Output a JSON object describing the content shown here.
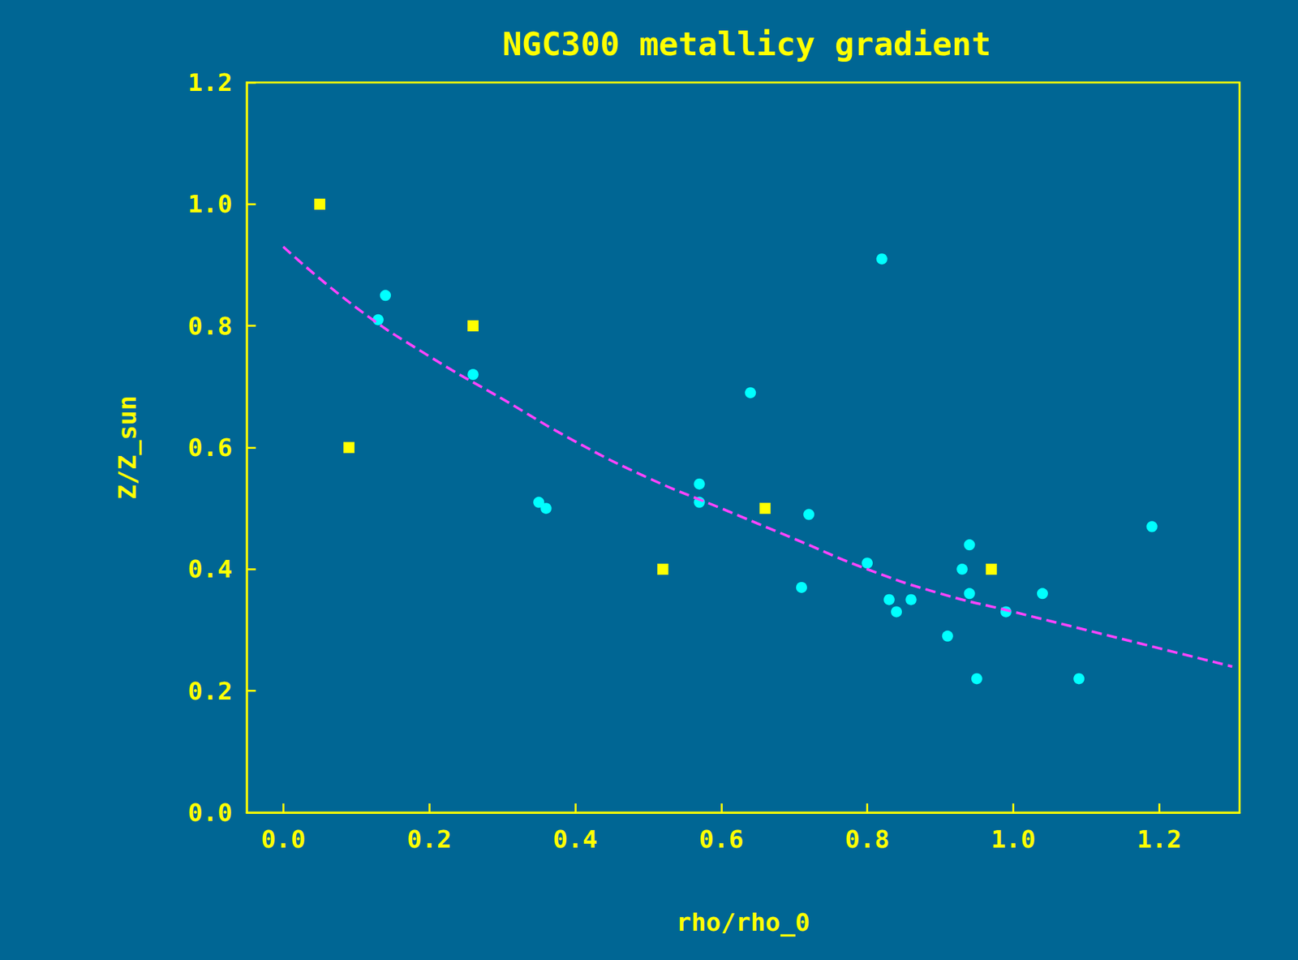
{
  "chart_data": {
    "type": "scatter",
    "title": "NGC300 metallicy gradient",
    "x_label": "rho/rho_0",
    "y_label": "Z/Z_sun",
    "xlim": [
      -0.05,
      1.31
    ],
    "ylim": [
      0,
      1.2
    ],
    "xticks": [
      {
        "value": 0,
        "label": "0.0"
      },
      0.2,
      0.4,
      0.6,
      0.8,
      {
        "value": 1,
        "label": "1.0"
      },
      1.2
    ],
    "yticks": [
      {
        "value": 0,
        "label": "0.0"
      },
      0.2,
      0.4,
      0.6,
      0.8,
      {
        "value": 1,
        "label": "1.0"
      },
      1.2
    ],
    "grid": false,
    "series": [
      {
        "type": "scatter",
        "marker": "square",
        "color": "#ffff00",
        "x": [
          0.05,
          0.09,
          0.26,
          0.52,
          0.66,
          0.97
        ],
        "values": [
          1.0,
          0.6,
          0.8,
          0.4,
          0.5,
          0.4
        ]
      },
      {
        "type": "scatter",
        "marker": "circle",
        "color": "#00ffff",
        "x": [
          0.13,
          0.14,
          0.26,
          0.35,
          0.36,
          0.57,
          0.57,
          0.64,
          0.71,
          0.72,
          0.8,
          0.82,
          0.83,
          0.84,
          0.86,
          0.91,
          0.93,
          0.94,
          0.94,
          0.95,
          0.99,
          1.04,
          1.09,
          1.19
        ],
        "values": [
          0.81,
          0.85,
          0.72,
          0.51,
          0.5,
          0.54,
          0.51,
          0.69,
          0.37,
          0.49,
          0.41,
          0.91,
          0.35,
          0.33,
          0.35,
          0.29,
          0.4,
          0.44,
          0.36,
          0.22,
          0.33,
          0.36,
          0.22,
          0.47
        ]
      },
      {
        "type": "line",
        "line_style": "dashed",
        "color": "#ff44ff",
        "x": [
          0,
          0.1,
          0.2,
          0.3,
          0.4,
          0.5,
          0.6,
          0.7,
          0.8,
          0.9,
          1.0,
          1.1,
          1.2,
          1.3
        ],
        "values": [
          0.93,
          0.83,
          0.75,
          0.68,
          0.61,
          0.55,
          0.5,
          0.45,
          0.4,
          0.36,
          0.33,
          0.3,
          0.27,
          0.24
        ]
      }
    ]
  }
}
